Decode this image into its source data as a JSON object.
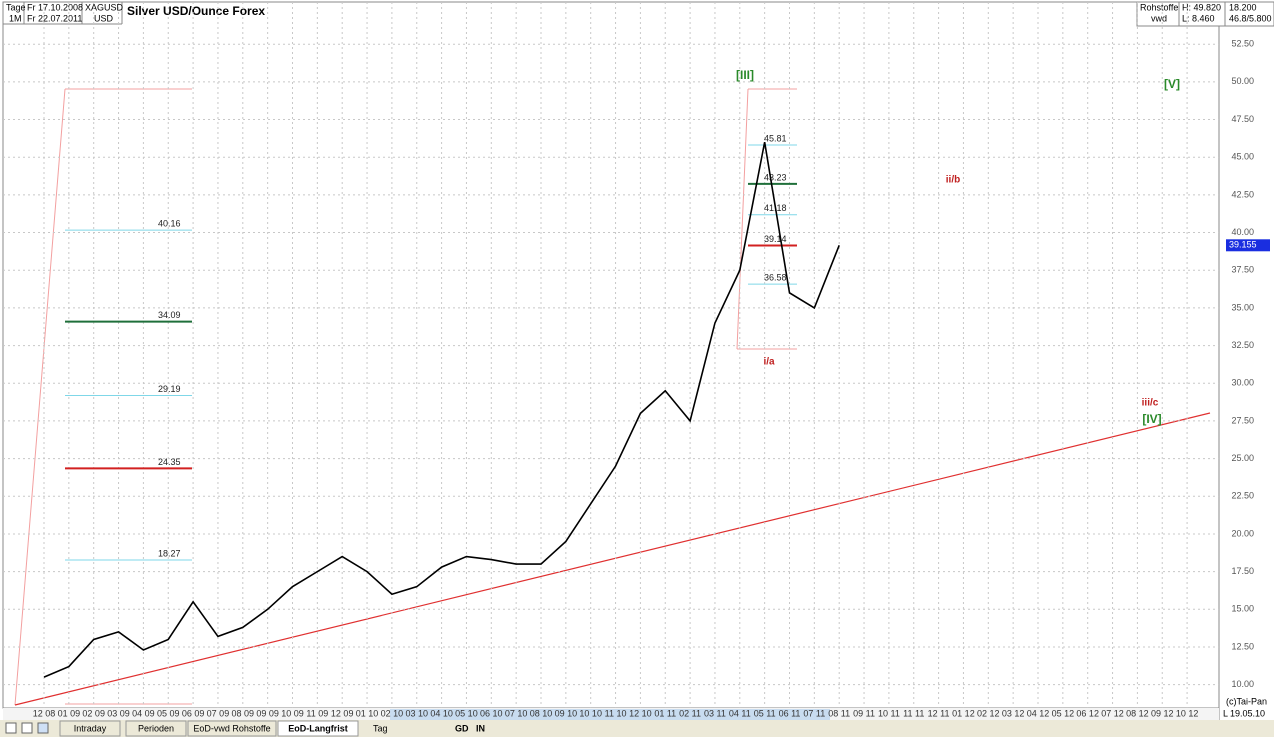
{
  "header": {
    "period": "Tage",
    "range_from": "Fr 17.10.2008",
    "symbol": "XAGUSD",
    "interval": "1M",
    "range_to": "Fr 22.07.2011",
    "currency": "USD",
    "title": "Silver USD/Ounce Forex",
    "group": "Rohstoffe",
    "source": "vwd",
    "high": "H: 49.820",
    "low": "L: 8.460",
    "right_top": "18.200",
    "right_bottom": "46.8/5.800"
  },
  "chart_data": {
    "type": "line",
    "color": "#000000",
    "categories": [
      "12 08",
      "01 09",
      "02 09",
      "03 09",
      "04 09",
      "05 09",
      "06 09",
      "07 09",
      "08 09",
      "09 09",
      "10 09",
      "11 09",
      "12 09",
      "01 10",
      "02 10",
      "03 10",
      "04 10",
      "05 10",
      "06 10",
      "07 10",
      "08 10",
      "09 10",
      "10 10",
      "11 10",
      "12 10",
      "01 11",
      "02 11",
      "03 11",
      "04 11",
      "05 11",
      "06 11",
      "07 11",
      "08 11",
      "09 11",
      "10 11",
      "11 11",
      "12 11",
      "01 12",
      "02 12",
      "03 12",
      "04 12",
      "05 12",
      "06 12",
      "07 12",
      "08 12",
      "09 12",
      "10 12"
    ],
    "values": [
      10.5,
      11.2,
      13,
      13.5,
      12.3,
      13,
      15.5,
      13.2,
      13.8,
      15,
      16.5,
      17.5,
      18.5,
      17.5,
      16,
      16.5,
      17.8,
      18.5,
      18.3,
      18,
      18,
      19.5,
      22,
      24.5,
      28,
      29.5,
      27.5,
      34,
      37.5,
      46,
      36,
      35,
      39.155,
      null,
      null,
      null,
      null,
      null,
      null,
      null,
      null,
      null,
      null,
      null,
      null,
      null,
      null
    ],
    "ylim": [
      8.45,
      55.3
    ],
    "yticks": [
      {
        "value": 10,
        "label": "10.00"
      },
      {
        "value": 12.5,
        "label": "12.50"
      },
      {
        "value": 15,
        "label": "15.00"
      },
      {
        "value": 17.5,
        "label": "17.50"
      },
      {
        "value": 20,
        "label": "20.00"
      },
      {
        "value": 22.5,
        "label": "22.50"
      },
      {
        "value": 25,
        "label": "25.00"
      },
      {
        "value": 27.5,
        "label": "27.50"
      },
      {
        "value": 30,
        "label": "30.00"
      },
      {
        "value": 32.5,
        "label": "32.50"
      },
      {
        "value": 35,
        "label": "35.00"
      },
      {
        "value": 37.5,
        "label": "37.50"
      },
      {
        "value": 40,
        "label": "40.00"
      },
      {
        "value": 42.5,
        "label": "42.50"
      },
      {
        "value": 45,
        "label": "45.00"
      },
      {
        "value": 47.5,
        "label": "47.50"
      },
      {
        "value": 50,
        "label": "50.00"
      },
      {
        "value": 52.5,
        "label": "52.50"
      }
    ],
    "grid": true,
    "last_price": 39.155,
    "levels_left": [
      {
        "value": 40.16,
        "color": "#7fd7e8",
        "width": 1
      },
      {
        "value": 34.09,
        "color": "#1f6f3a",
        "width": 2
      },
      {
        "value": 29.19,
        "color": "#7fd7e8",
        "width": 1
      },
      {
        "value": 24.35,
        "color": "#d22020",
        "width": 2
      },
      {
        "value": 18.27,
        "color": "#7fd7e8",
        "width": 1
      }
    ],
    "levels_right": [
      {
        "value": 45.81,
        "color": "#7fd7e8",
        "width": 1
      },
      {
        "value": 43.23,
        "color": "#1f6f3a",
        "width": 2
      },
      {
        "value": 41.18,
        "color": "#7fd7e8",
        "width": 1
      },
      {
        "value": 39.14,
        "color": "#d22020",
        "width": 2
      },
      {
        "value": 36.58,
        "color": "#7fd7e8",
        "width": 1
      }
    ],
    "annotations": [
      {
        "text": "[III]",
        "color": "#2a8a2a"
      },
      {
        "text": "[V]",
        "color": "#2a8a2a"
      },
      {
        "text": "ii/b",
        "color": "#c02020"
      },
      {
        "text": "i/a",
        "color": "#c02020"
      },
      {
        "text": "iii/c",
        "color": "#c02020"
      },
      {
        "text": "[IV]",
        "color": "#2a8a2a"
      }
    ]
  },
  "footer": {
    "copyright": "(c)Tai-Pan",
    "date": "19.05.10",
    "scale_mode": "L",
    "tabs": [
      "Intraday",
      "Perioden",
      "EoD-vwd Rohstoffe",
      "EoD-Langfrist"
    ],
    "toolbar": [
      "Tag",
      "GD",
      "IN"
    ]
  }
}
